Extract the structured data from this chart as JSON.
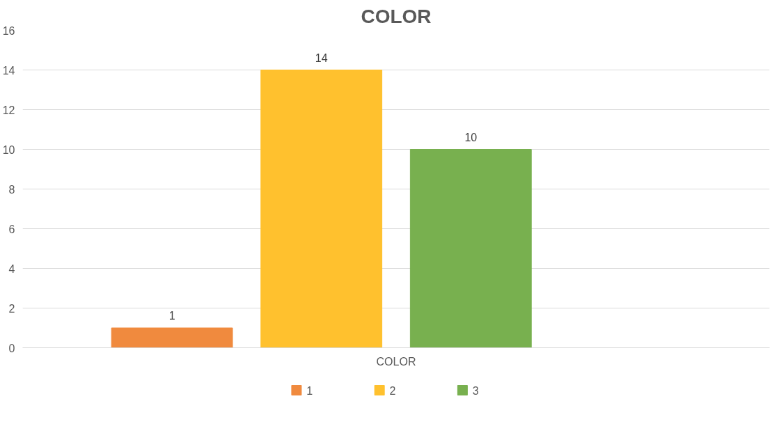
{
  "chart_data": {
    "type": "bar",
    "title": "COLOR",
    "categories": [
      "COLOR"
    ],
    "series": [
      {
        "name": "1",
        "color": "#f08a3e",
        "values": [
          1
        ]
      },
      {
        "name": "2",
        "color": "#ffc12e",
        "values": [
          14
        ]
      },
      {
        "name": "3",
        "color": "#78b04f",
        "values": [
          10
        ]
      }
    ],
    "ylim": [
      0,
      16
    ],
    "yticks": [
      0,
      2,
      4,
      6,
      8,
      10,
      12,
      14,
      16
    ],
    "grid": "y",
    "legend": "bottom",
    "data_labels": true
  }
}
